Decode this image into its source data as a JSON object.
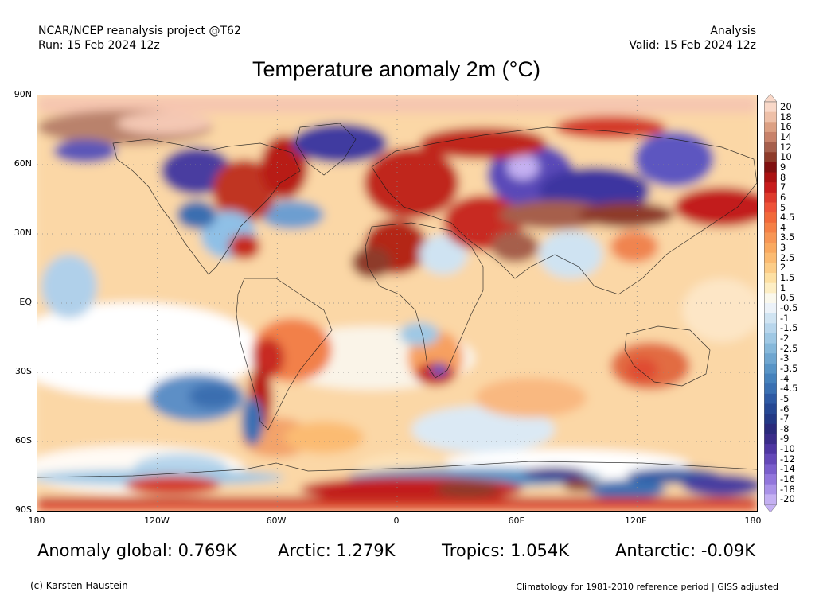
{
  "header": {
    "model": "NCAR/NCEP reanalysis project @T62",
    "run": "Run: 15 Feb 2024 12z",
    "type": "Analysis",
    "valid": "Valid: 15 Feb 2024 12z"
  },
  "title": "Temperature anomaly 2m (°C)",
  "axes": {
    "lat_labels": [
      "90N",
      "60N",
      "30N",
      "EQ",
      "30S",
      "60S",
      "90S"
    ],
    "lon_labels": [
      "180",
      "120W",
      "60W",
      "0",
      "60E",
      "120E",
      "180"
    ]
  },
  "colorbar": {
    "labels": [
      "20",
      "18",
      "16",
      "14",
      "12",
      "10",
      "9",
      "8",
      "7",
      "6",
      "5",
      "4.5",
      "4",
      "3.5",
      "3",
      "2.5",
      "2",
      "1.5",
      "1",
      "0.5",
      "-0.5",
      "-1",
      "-1.5",
      "-2",
      "-2.5",
      "-3",
      "-3.5",
      "-4",
      "-4.5",
      "-5",
      "-6",
      "-7",
      "-8",
      "-9",
      "-10",
      "-12",
      "-14",
      "-16",
      "-18",
      "-20"
    ],
    "colors": [
      "#f9d8c8",
      "#eec0a8",
      "#dca083",
      "#c8826a",
      "#a65f4c",
      "#8e3b2a",
      "#801010",
      "#aa1212",
      "#c81c1c",
      "#de3a2c",
      "#ee5238",
      "#f2693a",
      "#f58046",
      "#f79655",
      "#f9a960",
      "#fbbb72",
      "#fccd88",
      "#fde0a3",
      "#fdeec4",
      "#faf8ec",
      "#ecf2f8",
      "#d0e4f2",
      "#b8d6ec",
      "#9fc8e4",
      "#86b8da",
      "#6fa6d0",
      "#5894c6",
      "#4682bc",
      "#3a70b2",
      "#2e5aa4",
      "#264894",
      "#233986",
      "#2a2a7c",
      "#3a2c8a",
      "#4e36a2",
      "#6448b8",
      "#7a5ecc",
      "#9276dc",
      "#aa92e8",
      "#c4b0f2"
    ]
  },
  "stats": {
    "global": "Anomaly global: 0.769K",
    "arctic": "Arctic: 1.279K",
    "tropics": "Tropics: 1.054K",
    "antarctic": "Antarctic: -0.09K"
  },
  "footer": {
    "credit": "(c) Karsten Haustein",
    "note": "Climatology for 1981-2010 reference period | GISS adjusted"
  }
}
